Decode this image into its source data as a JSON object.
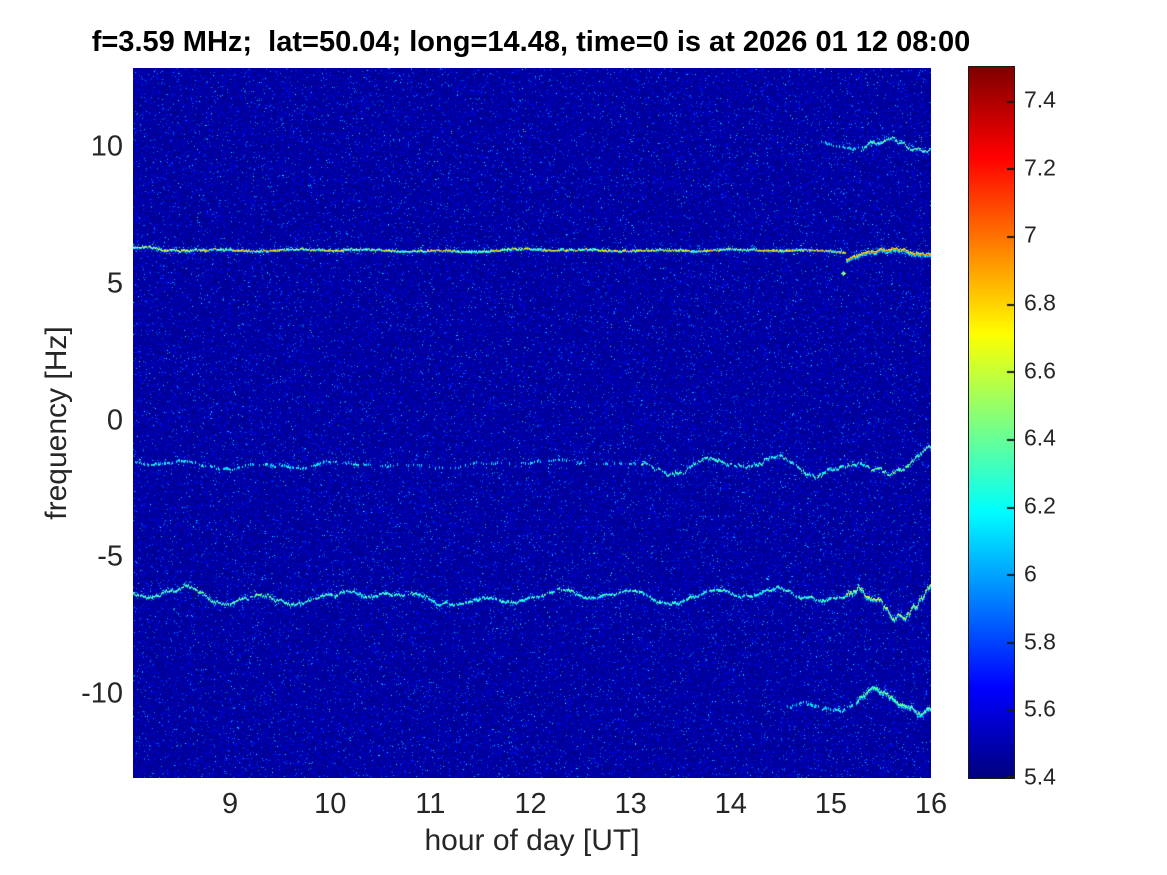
{
  "title": "f=3.59 MHz;  lat=50.04; long=14.48, time=0 is at 2026 01 12 08:00",
  "chart_data": {
    "type": "heatmap",
    "title": "f=3.59 MHz;  lat=50.04; long=14.48, time=0 is at 2026 01 12 08:00",
    "xlabel": "hour of day [UT]",
    "ylabel": "frequency [Hz]",
    "xlim": [
      8.03,
      16.0
    ],
    "ylim": [
      -13.07,
      12.89
    ],
    "xticks": [
      "9",
      "10",
      "11",
      "12",
      "13",
      "14",
      "15",
      "16"
    ],
    "xtick_values": [
      9,
      10,
      11,
      12,
      13,
      14,
      15,
      16
    ],
    "yticks": [
      "10",
      "5",
      "0",
      "-5",
      "-10"
    ],
    "ytick_values": [
      10,
      5,
      0,
      -5,
      -10
    ],
    "grid": false,
    "legend": "none",
    "colormap": "jet",
    "colorbar": {
      "position": "right",
      "min": 5.4,
      "max": 7.5,
      "ticks": [
        "7.4",
        "7.2",
        "7",
        "6.8",
        "6.6",
        "6.4",
        "6.2",
        "6",
        "5.8",
        "5.6",
        "5.4"
      ],
      "tick_values": [
        7.4,
        7.2,
        7.0,
        6.8,
        6.6,
        6.4,
        6.2,
        6.0,
        5.8,
        5.6,
        5.4
      ]
    },
    "background": {
      "description": "dark blue spectral noise floor",
      "level_min": 5.4,
      "level_typical": 5.5,
      "speckle_max": 6.25
    },
    "traces": [
      {
        "name": "carrier-line",
        "description": "strong nearly-straight spectral line at +6.25 Hz across all hours, wavy and intense near 15-16 UT",
        "freq": 6.25,
        "segments": [
          {
            "h0": 8.03,
            "h1": 8.65,
            "amp": 0.12,
            "core": 6.55,
            "cmax": 6.95,
            "gate": 1.0,
            "halo": 0.65,
            "thick": 1
          },
          {
            "h0": 8.65,
            "h1": 15.15,
            "amp": 0.05,
            "core": 6.65,
            "cmax": 7.0,
            "gate": 1.0,
            "halo": 0.22,
            "thick": 1
          },
          {
            "h0": 15.15,
            "h1": 16.0,
            "amp": 0.28,
            "core": 6.8,
            "cmax": 7.4,
            "gate": 1.0,
            "halo": 0.75,
            "thick": 2
          }
        ]
      },
      {
        "name": "trace-minus-1p6hz",
        "description": "faint intermittent wavy trace near -1.6 Hz, continuous and stronger after ~13 UT",
        "freq": -1.58,
        "segments": [
          {
            "h0": 8.03,
            "h1": 10.4,
            "amp": 0.18,
            "core": 6.05,
            "cmax": 6.5,
            "gate": 0.55,
            "halo": 0.3,
            "thick": 1
          },
          {
            "h0": 10.4,
            "h1": 13.1,
            "amp": 0.15,
            "core": 5.95,
            "cmax": 6.4,
            "gate": 0.3,
            "halo": 0.2,
            "thick": 1
          },
          {
            "h0": 13.1,
            "h1": 15.4,
            "amp": 0.45,
            "core": 6.2,
            "cmax": 6.7,
            "gate": 0.9,
            "halo": 0.35,
            "thick": 1
          },
          {
            "h0": 15.4,
            "h1": 16.0,
            "amp": 0.6,
            "core": 6.35,
            "cmax": 7.1,
            "gate": 1.0,
            "halo": 0.5,
            "thick": 1
          }
        ]
      },
      {
        "name": "trace-minus-6p5hz",
        "description": "continuous wavy trace near -6.5 Hz across all hours, strong red/orange excursions 15.2-16 UT",
        "freq": -6.45,
        "segments": [
          {
            "h0": 8.03,
            "h1": 9.7,
            "amp": 0.42,
            "core": 6.3,
            "cmax": 6.8,
            "gate": 0.95,
            "halo": 0.45,
            "thick": 1
          },
          {
            "h0": 9.7,
            "h1": 15.15,
            "amp": 0.3,
            "core": 6.2,
            "cmax": 6.7,
            "gate": 0.9,
            "halo": 0.38,
            "thick": 1
          },
          {
            "h0": 15.15,
            "h1": 16.0,
            "amp": 0.9,
            "core": 6.55,
            "cmax": 7.45,
            "gate": 1.0,
            "halo": 0.7,
            "thick": 2
          }
        ]
      },
      {
        "name": "trace-plus-10hz",
        "description": "wavy cyan trace near +10 Hz appearing only 14.9-16 UT",
        "freq": 10.1,
        "segments": [
          {
            "h0": 14.9,
            "h1": 15.3,
            "amp": 0.25,
            "core": 5.95,
            "cmax": 6.3,
            "gate": 0.5,
            "halo": 0.25,
            "thick": 1
          },
          {
            "h0": 15.3,
            "h1": 16.0,
            "amp": 0.42,
            "core": 6.3,
            "cmax": 6.75,
            "gate": 1.0,
            "halo": 0.35,
            "thick": 1
          }
        ]
      },
      {
        "name": "trace-minus-10p3hz",
        "description": "wavy cyan trace with yellow patches near -10.3 Hz appearing only 14.6-16 UT",
        "freq": -10.35,
        "segments": [
          {
            "h0": 14.55,
            "h1": 15.25,
            "amp": 0.3,
            "core": 6.0,
            "cmax": 6.4,
            "gate": 0.55,
            "halo": 0.3,
            "thick": 1
          },
          {
            "h0": 15.25,
            "h1": 16.0,
            "amp": 0.5,
            "core": 6.35,
            "cmax": 7.1,
            "gate": 1.0,
            "halo": 0.55,
            "thick": 2
          }
        ]
      }
    ],
    "blobs": [
      {
        "h": 15.12,
        "f": 5.4,
        "v": 6.6,
        "r": 2
      },
      {
        "h": 12.35,
        "f": 6.25,
        "v": 6.9,
        "r": 1
      }
    ]
  }
}
